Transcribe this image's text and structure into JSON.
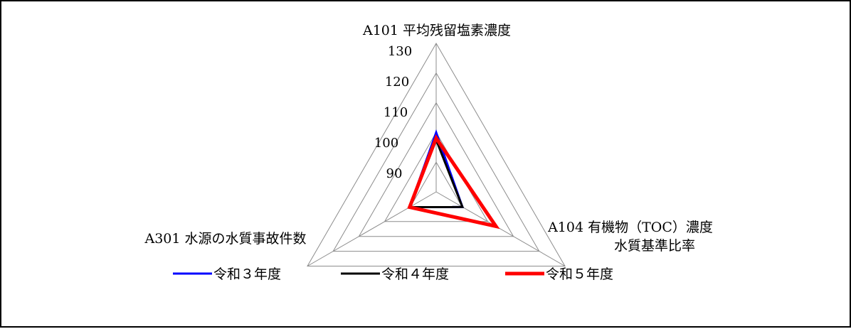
{
  "chart_data": {
    "type": "radar",
    "axes": [
      [
        "A101 平均残留塩素濃度"
      ],
      [
        "A104 有機物（TOC）濃度",
        "水質基準比率"
      ],
      [
        "A301 水源の水質事故件数"
      ]
    ],
    "ticks": [
      "130",
      "120",
      "110",
      "100",
      "90"
    ],
    "range": [
      80,
      130
    ],
    "grid": [
      90,
      100,
      110,
      120,
      130
    ],
    "series": [
      {
        "name": "令和３年度",
        "color": "#0000ff",
        "values": [
          100,
          90.2,
          90.3
        ]
      },
      {
        "name": "令和４年度",
        "color": "#000000",
        "values": [
          97.5,
          90.2,
          90.3
        ]
      },
      {
        "name": "令和５年度",
        "color": "#ff0000",
        "values": [
          98.1,
          103.2,
          90.3
        ]
      }
    ],
    "legend_position": "bottom"
  }
}
